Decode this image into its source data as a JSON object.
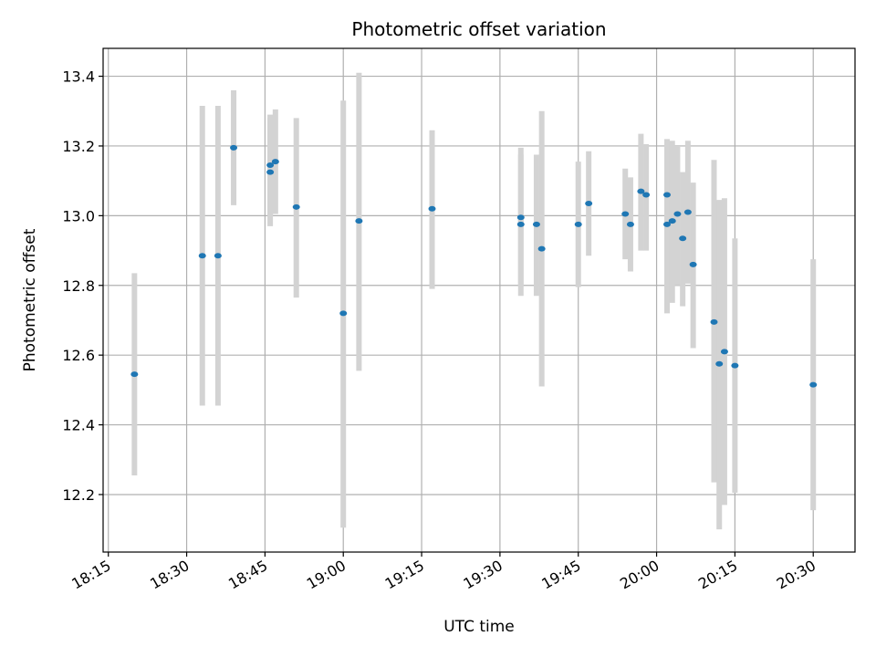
{
  "chart_data": {
    "type": "scatter",
    "title": "Photometric offset variation",
    "xlabel": "UTC time",
    "ylabel": "Photometric offset",
    "xlim": [
      "18:14",
      "20:38"
    ],
    "ylim": [
      12.035,
      13.48
    ],
    "grid": true,
    "x_ticks": [
      "18:15",
      "18:30",
      "18:45",
      "19:00",
      "19:15",
      "19:30",
      "19:45",
      "20:00",
      "20:15",
      "20:30"
    ],
    "y_ticks": [
      "12.2",
      "12.4",
      "12.6",
      "12.8",
      "13.0",
      "13.2",
      "13.4"
    ],
    "colors": {
      "points": "#1f77b4",
      "error_bars": "#d3d3d3",
      "grid": "#b0b0b0",
      "axes": "#000000"
    },
    "series": [
      {
        "points": [
          {
            "x": "18:20",
            "y": 12.545,
            "ylo": 12.255,
            "yhi": 12.835
          },
          {
            "x": "18:33",
            "y": 12.885,
            "ylo": 12.455,
            "yhi": 13.315
          },
          {
            "x": "18:36",
            "y": 12.885,
            "ylo": 12.455,
            "yhi": 13.315
          },
          {
            "x": "18:39",
            "y": 13.195,
            "ylo": 13.03,
            "yhi": 13.36
          },
          {
            "x": "18:46",
            "y": 13.145,
            "ylo": 13.0,
            "yhi": 13.29
          },
          {
            "x": "18:46",
            "y": 13.125,
            "ylo": 12.97,
            "yhi": 13.28
          },
          {
            "x": "18:47",
            "y": 13.155,
            "ylo": 13.005,
            "yhi": 13.305
          },
          {
            "x": "18:51",
            "y": 13.025,
            "ylo": 12.765,
            "yhi": 13.28
          },
          {
            "x": "19:00",
            "y": 12.72,
            "ylo": 12.105,
            "yhi": 13.33
          },
          {
            "x": "19:03",
            "y": 12.985,
            "ylo": 12.555,
            "yhi": 13.41
          },
          {
            "x": "19:17",
            "y": 13.02,
            "ylo": 12.79,
            "yhi": 13.245
          },
          {
            "x": "19:34",
            "y": 12.995,
            "ylo": 12.8,
            "yhi": 13.195
          },
          {
            "x": "19:34",
            "y": 12.975,
            "ylo": 12.77,
            "yhi": 13.175
          },
          {
            "x": "19:37",
            "y": 12.975,
            "ylo": 12.77,
            "yhi": 13.175
          },
          {
            "x": "19:38",
            "y": 12.905,
            "ylo": 12.51,
            "yhi": 13.3
          },
          {
            "x": "19:45",
            "y": 12.975,
            "ylo": 12.795,
            "yhi": 13.155
          },
          {
            "x": "19:47",
            "y": 13.035,
            "ylo": 12.885,
            "yhi": 13.185
          },
          {
            "x": "19:54",
            "y": 13.005,
            "ylo": 12.875,
            "yhi": 13.135
          },
          {
            "x": "19:55",
            "y": 12.975,
            "ylo": 12.84,
            "yhi": 13.11
          },
          {
            "x": "19:57",
            "y": 13.07,
            "ylo": 12.9,
            "yhi": 13.235
          },
          {
            "x": "19:58",
            "y": 13.06,
            "ylo": 12.9,
            "yhi": 13.205
          },
          {
            "x": "20:02",
            "y": 13.06,
            "ylo": 12.9,
            "yhi": 13.21
          },
          {
            "x": "20:02",
            "y": 12.975,
            "ylo": 12.72,
            "yhi": 13.22
          },
          {
            "x": "20:03",
            "y": 12.985,
            "ylo": 12.75,
            "yhi": 13.215
          },
          {
            "x": "20:04",
            "y": 13.005,
            "ylo": 12.8,
            "yhi": 13.2
          },
          {
            "x": "20:05",
            "y": 12.935,
            "ylo": 12.74,
            "yhi": 13.125
          },
          {
            "x": "20:06",
            "y": 13.01,
            "ylo": 12.805,
            "yhi": 13.215
          },
          {
            "x": "20:07",
            "y": 12.86,
            "ylo": 12.62,
            "yhi": 13.095
          },
          {
            "x": "20:11",
            "y": 12.695,
            "ylo": 12.235,
            "yhi": 13.16
          },
          {
            "x": "20:12",
            "y": 12.575,
            "ylo": 12.1,
            "yhi": 13.045
          },
          {
            "x": "20:13",
            "y": 12.61,
            "ylo": 12.17,
            "yhi": 13.05
          },
          {
            "x": "20:15",
            "y": 12.57,
            "ylo": 12.205,
            "yhi": 12.935
          },
          {
            "x": "20:30",
            "y": 12.515,
            "ylo": 12.155,
            "yhi": 12.875
          }
        ]
      }
    ]
  }
}
